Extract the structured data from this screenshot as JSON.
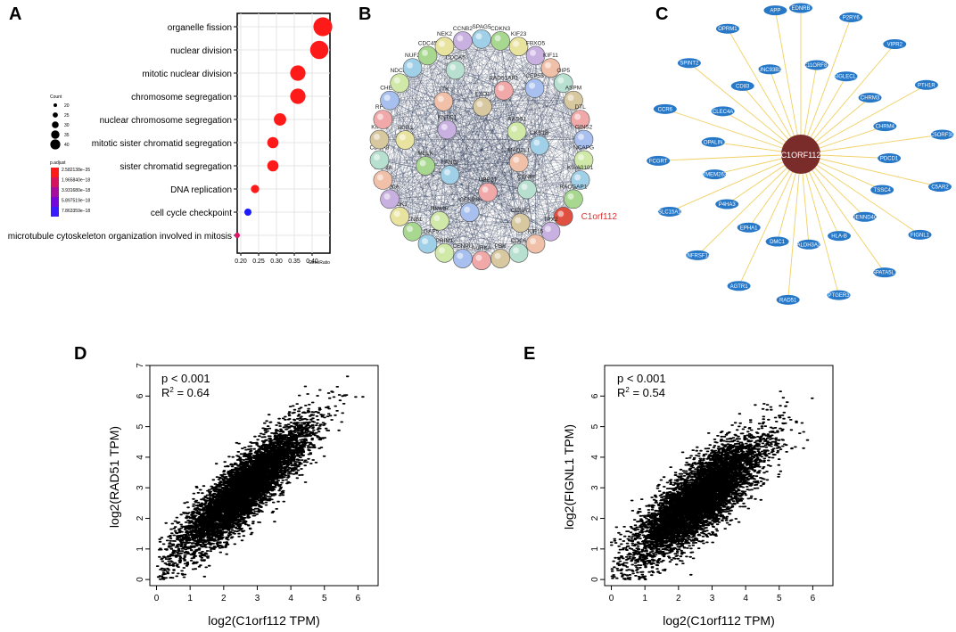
{
  "panels": {
    "a": {
      "label": "A"
    },
    "b": {
      "label": "B"
    },
    "c": {
      "label": "C"
    },
    "d": {
      "label": "D"
    },
    "e": {
      "label": "E"
    }
  },
  "chart_data": [
    {
      "id": "A",
      "type": "scatter",
      "subtype": "dot plot",
      "title": "",
      "xlabel": "GeneRatio",
      "ylabel": "",
      "xlim": [
        0.19,
        0.45
      ],
      "xticks": [
        "0.20",
        "0.25",
        "0.30",
        "0.35",
        "0.40"
      ],
      "terms": [
        {
          "term": "organelle fission",
          "gene_ratio": 0.43,
          "count": 40,
          "p_adjust_level": 0,
          "color": "#ff1a1a"
        },
        {
          "term": "nuclear division",
          "gene_ratio": 0.42,
          "count": 39,
          "p_adjust_level": 0,
          "color": "#ff1a1a"
        },
        {
          "term": "mitotic nuclear division",
          "gene_ratio": 0.36,
          "count": 34,
          "p_adjust_level": 0,
          "color": "#ff1a1a"
        },
        {
          "term": "chromosome segregation",
          "gene_ratio": 0.36,
          "count": 34,
          "p_adjust_level": 0,
          "color": "#ff1a1a"
        },
        {
          "term": "nuclear chromosome segregation",
          "gene_ratio": 0.31,
          "count": 29,
          "p_adjust_level": 0,
          "color": "#ff1a1a"
        },
        {
          "term": "mitotic sister chromatid segregation",
          "gene_ratio": 0.29,
          "count": 27,
          "p_adjust_level": 0,
          "color": "#ff1a1a"
        },
        {
          "term": "sister chromatid segregation",
          "gene_ratio": 0.29,
          "count": 27,
          "p_adjust_level": 0,
          "color": "#ff1a1a"
        },
        {
          "term": "DNA replication",
          "gene_ratio": 0.24,
          "count": 22,
          "p_adjust_level": 0,
          "color": "#ff1a1a"
        },
        {
          "term": "cell cycle checkpoint",
          "gene_ratio": 0.22,
          "count": 20,
          "p_adjust_level": 1,
          "color": "#1a1aff"
        },
        {
          "term": "microtubule cytoskeleton organization involved in mitosis",
          "gene_ratio": 0.19,
          "count": 17,
          "p_adjust_level": 0.3,
          "color": "#e0156a"
        }
      ],
      "size_legend": {
        "title": "Count",
        "values": [
          "20",
          "25",
          "30",
          "35",
          "40"
        ]
      },
      "color_legend": {
        "title": "p.adjust",
        "values": [
          "2.582138e−35",
          "1.965840e−18",
          "3.931680e−18",
          "5.897519e−18",
          "7.863359e−18"
        ],
        "colors": [
          "#ff1a1a",
          "#d4145e",
          "#a50e9f",
          "#7308d8",
          "#3a1aff"
        ]
      }
    },
    {
      "id": "B",
      "type": "other",
      "description": "protein-protein interaction network",
      "genes": [
        "SPAG5",
        "CDKN3",
        "KIF23",
        "FBXO5",
        "KIF11",
        "OIP5",
        "ASPM",
        "DTL",
        "GINS2",
        "NCAPG",
        "KIAA0101",
        "RACGAP1",
        "C1orf112",
        "TPX2",
        "KIF15",
        "CDC6",
        "PBK",
        "AURKA",
        "CENPU",
        "PRIM1",
        "DLGAP5",
        "CCNB1",
        "CDK1",
        "KIF20A",
        "TOP2A",
        "CDCA8",
        "KIF2C",
        "RFC4",
        "CHEK1",
        "NDC80",
        "NUF2",
        "CDC45",
        "NEK2",
        "CCNB2",
        "MAD2L1",
        "CENPF",
        "CCNA2",
        "UBE2T",
        "CENPN",
        "HMMR",
        "FANCI",
        "MELK",
        "BUB1",
        "KNTC1",
        "TTK",
        "CDCA5",
        "EXO1",
        "RAD51AP1",
        "CEP55",
        "RAD51",
        "CKS1B"
      ],
      "highlight": "C1orf112"
    },
    {
      "id": "C",
      "type": "other",
      "description": "co-expression network around C1ORF112",
      "hub": "C1ORF112",
      "nodes": [
        "EDNRB",
        "C11ORF87",
        "P2RY6",
        "SIGLECL1",
        "VIPR2",
        "CHRM3",
        "PTH1R",
        "CHRM4",
        "C5ORF30",
        "PDCD1",
        "C5AR2",
        "TSSC4",
        "FIGNL1",
        "DENND4C",
        "SPATA5L1",
        "HLA-B",
        "PTGER3",
        "ALDH3A2",
        "RAD51",
        "DMC1",
        "AGTR1",
        "EPHA1",
        "TNFRSF1A",
        "P4HA3",
        "SLC15A1",
        "TMEM263",
        "FCGRT",
        "OPALIN",
        "CCR6",
        "CLEC4A",
        "SPINT2",
        "CD83",
        "OPRM1",
        "UNC93B1",
        "APP"
      ]
    },
    {
      "id": "D",
      "type": "scatter",
      "xlabel": "log2(C1orf112 TPM)",
      "ylabel": "log2(RAD51 TPM)",
      "xlim": [
        -0.2,
        6.6
      ],
      "ylim": [
        -0.2,
        7.0
      ],
      "xticks": [
        "0",
        "1",
        "2",
        "3",
        "4",
        "5",
        "6"
      ],
      "yticks": [
        "0",
        "1",
        "2",
        "3",
        "4",
        "5",
        "6",
        "7"
      ],
      "p_text": "p < 0.001",
      "r2_label": "R",
      "r2_sup": "2",
      "r2_value": " = 0.64",
      "r2": 0.64,
      "slope": 0.95,
      "intercept": 0.45,
      "n_points": 6500
    },
    {
      "id": "E",
      "type": "scatter",
      "xlabel": "log2(C1orf112 TPM)",
      "ylabel": "log2(FIGNL1 TPM)",
      "xlim": [
        -0.2,
        6.6
      ],
      "ylim": [
        -0.2,
        7.0
      ],
      "xticks": [
        "0",
        "1",
        "2",
        "3",
        "4",
        "5",
        "6"
      ],
      "yticks": [
        "0",
        "1",
        "2",
        "3",
        "4",
        "5",
        "6"
      ],
      "p_text": "p < 0.001",
      "r2_label": "R",
      "r2_sup": "2",
      "r2_value": " = 0.54",
      "r2": 0.54,
      "slope": 0.85,
      "intercept": 0.4,
      "n_points": 6500
    }
  ]
}
